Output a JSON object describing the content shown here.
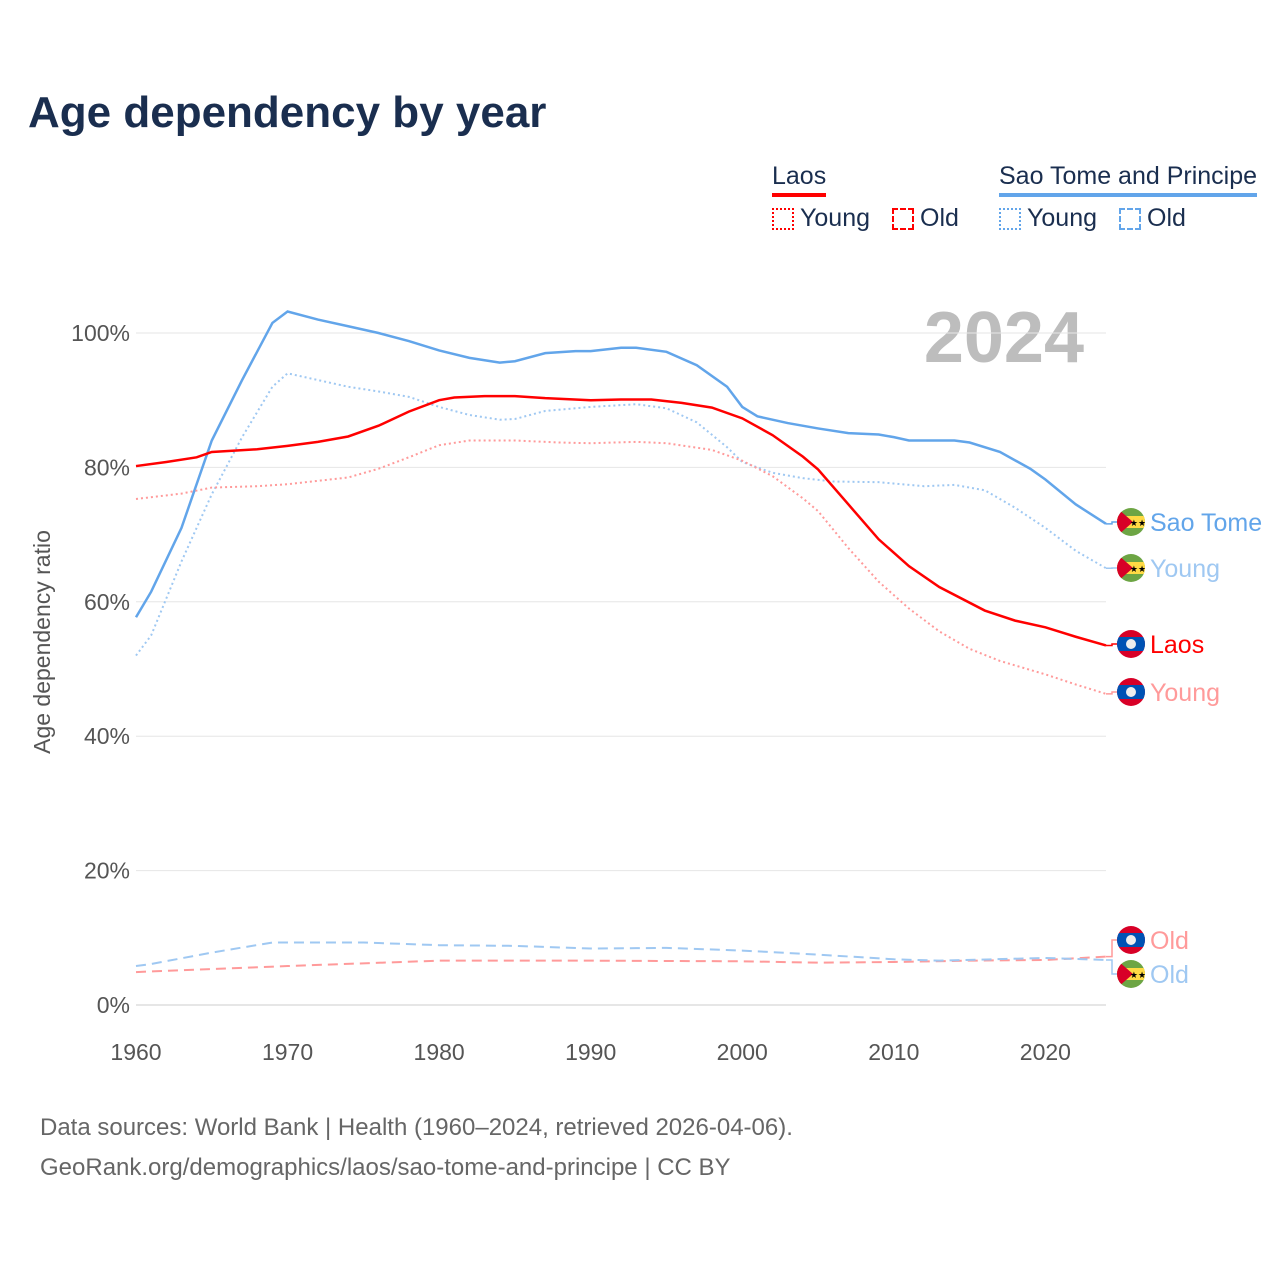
{
  "title": "Age dependency by year",
  "legend": {
    "groups": [
      {
        "name": "Laos",
        "color": "#ff0000",
        "items": [
          "Young",
          "Old"
        ]
      },
      {
        "name": "Sao Tome and Principe",
        "color": "#62a5ea",
        "items": [
          "Young",
          "Old"
        ]
      }
    ]
  },
  "year_label": "2024",
  "footer": {
    "line1": "Data sources: World Bank | Health (1960–2024, retrieved 2026-04-06).",
    "line2": "GeoRank.org/demographics/laos/sao-tome-and-principe | CC BY"
  },
  "chart_data": {
    "type": "line",
    "title": "Age dependency by year",
    "xlabel": "",
    "ylabel": "Age dependency ratio",
    "xlim": [
      1960,
      2024
    ],
    "ylim": [
      0,
      100
    ],
    "xticks": [
      "1960",
      "1970",
      "1980",
      "1990",
      "2000",
      "2010",
      "2020"
    ],
    "yticks": [
      "0%",
      "20%",
      "40%",
      "60%",
      "80%",
      "100%"
    ],
    "grid": true,
    "series": [
      {
        "name": "Sao Tome",
        "label": "Sao Tome",
        "color": "#62a5ea",
        "dash": "solid",
        "flag": "sao-tome",
        "x": [
          1960,
          1961,
          1963,
          1965,
          1967,
          1969,
          1970,
          1972,
          1974,
          1976,
          1978,
          1980,
          1982,
          1984,
          1985,
          1987,
          1989,
          1990,
          1992,
          1993,
          1995,
          1997,
          1999,
          2000,
          2001,
          2003,
          2005,
          2007,
          2009,
          2010,
          2011,
          2013,
          2014,
          2015,
          2017,
          2019,
          2020,
          2022,
          2024
        ],
        "y": [
          57.7,
          61.5,
          71,
          84,
          93,
          101.5,
          103.2,
          102,
          101,
          100,
          98.8,
          97.4,
          96.3,
          95.6,
          95.8,
          97,
          97.3,
          97.3,
          97.8,
          97.8,
          97.2,
          95.2,
          92,
          89,
          87.6,
          86.6,
          85.8,
          85.1,
          84.9,
          84.5,
          84,
          84,
          84,
          83.7,
          82.3,
          79.8,
          78.2,
          74.5,
          71.6
        ]
      },
      {
        "name": "Sao Tome Young",
        "label": "Young",
        "color": "#9fc8f2",
        "dash": "dotted",
        "flag": "sao-tome",
        "x": [
          1960,
          1961,
          1963,
          1965,
          1967,
          1969,
          1970,
          1972,
          1974,
          1976,
          1978,
          1980,
          1982,
          1984,
          1985,
          1987,
          1990,
          1993,
          1995,
          1997,
          1999,
          2000,
          2002,
          2004,
          2006,
          2009,
          2012,
          2014,
          2016,
          2018,
          2020,
          2022,
          2024
        ],
        "y": [
          52,
          55,
          66,
          76,
          84.5,
          92,
          94,
          93,
          92,
          91.3,
          90.5,
          89,
          87.8,
          87.1,
          87.2,
          88.4,
          89,
          89.4,
          88.8,
          86.7,
          83,
          80.8,
          79.2,
          78.4,
          77.9,
          77.8,
          77.2,
          77.4,
          76.6,
          74,
          71,
          67.6,
          65
        ]
      },
      {
        "name": "Laos",
        "label": "Laos",
        "color": "#ff0000",
        "dash": "solid",
        "flag": "laos",
        "x": [
          1960,
          1962,
          1964,
          1965,
          1968,
          1970,
          1972,
          1974,
          1976,
          1978,
          1980,
          1981,
          1983,
          1985,
          1987,
          1990,
          1992,
          1994,
          1996,
          1998,
          2000,
          2002,
          2004,
          2005,
          2007,
          2009,
          2011,
          2013,
          2016,
          2018,
          2020,
          2022,
          2024
        ],
        "y": [
          80.2,
          80.8,
          81.5,
          82.3,
          82.7,
          83.2,
          83.8,
          84.6,
          86.2,
          88.3,
          90,
          90.4,
          90.6,
          90.6,
          90.3,
          90,
          90.1,
          90.1,
          89.6,
          88.9,
          87.3,
          84.8,
          81.6,
          79.7,
          74.5,
          69.3,
          65.3,
          62.2,
          58.7,
          57.2,
          56.2,
          54.8,
          53.5
        ]
      },
      {
        "name": "Laos Young",
        "label": "Young",
        "color": "#ff9a9a",
        "dash": "dotted",
        "flag": "laos",
        "x": [
          1960,
          1963,
          1965,
          1968,
          1970,
          1972,
          1974,
          1976,
          1978,
          1980,
          1982,
          1985,
          1988,
          1990,
          1993,
          1995,
          1998,
          2000,
          2002,
          2004,
          2005,
          2007,
          2009,
          2011,
          2013,
          2015,
          2017,
          2020,
          2022,
          2024
        ],
        "y": [
          75.3,
          76.1,
          77,
          77.2,
          77.5,
          78,
          78.5,
          79.8,
          81.5,
          83.3,
          84,
          84,
          83.7,
          83.6,
          83.8,
          83.6,
          82.6,
          81,
          78.7,
          75.4,
          73.5,
          68,
          63,
          59,
          55.6,
          53,
          51.2,
          49.2,
          47.7,
          46.3
        ]
      },
      {
        "name": "Laos Old",
        "label": "Old",
        "color": "#ff9a9a",
        "dash": "dashed",
        "flag": "laos",
        "x": [
          1960,
          1970,
          1980,
          1990,
          2000,
          2005,
          2010,
          2015,
          2020,
          2024
        ],
        "y": [
          4.9,
          5.8,
          6.6,
          6.6,
          6.5,
          6.3,
          6.4,
          6.6,
          6.7,
          7.2
        ]
      },
      {
        "name": "Sao Tome Old",
        "label": "Old",
        "color": "#9fc8f2",
        "dash": "dashed",
        "flag": "sao-tome",
        "x": [
          1960,
          1961,
          1965,
          1969,
          1975,
          1980,
          1985,
          1990,
          1995,
          2000,
          2005,
          2010,
          2013,
          2020,
          2024
        ],
        "y": [
          5.8,
          6.1,
          7.8,
          9.3,
          9.3,
          8.9,
          8.8,
          8.4,
          8.5,
          8.1,
          7.5,
          6.8,
          6.6,
          7,
          6.7
        ]
      }
    ]
  }
}
